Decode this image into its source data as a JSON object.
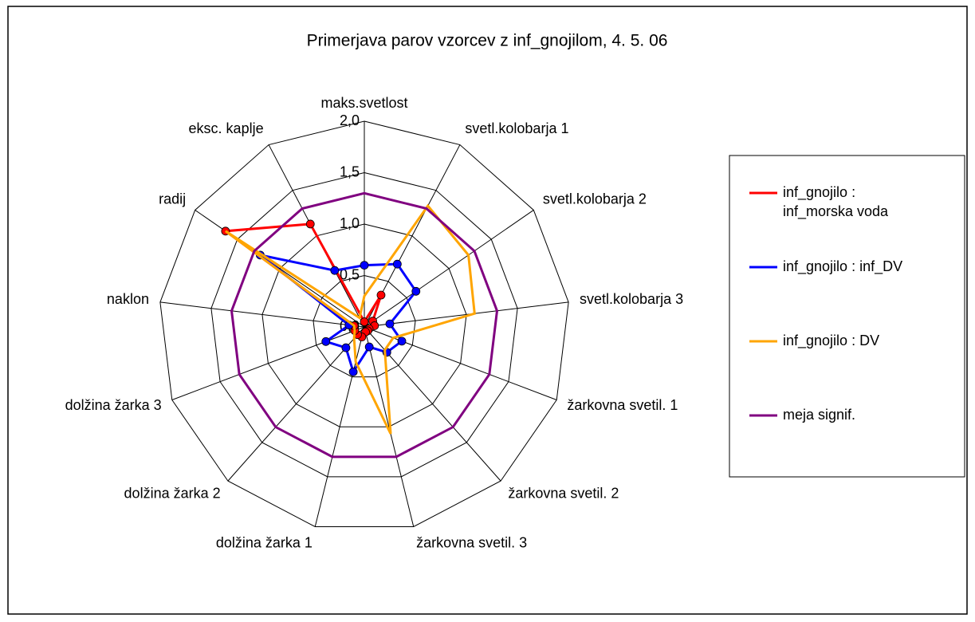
{
  "chart_data": {
    "type": "radar",
    "title": "Primerjava parov vzorcev z inf_gnojilom, 4. 5. 06",
    "categories": [
      "maks.svetlost",
      "svetl.kolobarja 1",
      "svetl.kolobarja 2",
      "svetl.kolobarja 3",
      "žarkovna svetil. 1",
      "žarkovna svetil. 2",
      "žarkovna svetil. 3",
      "dolžina žarka 1",
      "dolžina žarka 2",
      "dolžina žarka 3",
      "naklon",
      "radij",
      "eksc. kaplje"
    ],
    "ylim": [
      0,
      2
    ],
    "yticks": [
      {
        "value": 0,
        "label": "0,0"
      },
      {
        "value": 0.5,
        "label": "0,5"
      },
      {
        "value": 1,
        "label": "1,0"
      },
      {
        "value": 1.5,
        "label": "1,5"
      },
      {
        "value": 2,
        "label": "2,0"
      }
    ],
    "series": [
      {
        "name": "inf_gnojilo : inf_morska voda",
        "color": "#ff0000",
        "markers": true,
        "values": [
          0.05,
          0.35,
          0.1,
          0.1,
          0.05,
          0.05,
          0.05,
          0.1,
          0.1,
          0.1,
          0.1,
          1.64,
          1.13
        ]
      },
      {
        "name": "inf_gnojilo : inf_DV",
        "color": "#0000ff",
        "markers": true,
        "values": [
          0.6,
          0.69,
          0.61,
          0.25,
          0.39,
          0.33,
          0.2,
          0.45,
          0.27,
          0.4,
          0.15,
          1.23,
          0.62
        ]
      },
      {
        "name": "inf_gnojilo : DV",
        "color": "#ffa500",
        "markers": false,
        "values": [
          0.3,
          1.33,
          1.23,
          1.08,
          0.3,
          0.3,
          1.07,
          0.35,
          0.15,
          0.1,
          0.1,
          1.64,
          0.1
        ]
      },
      {
        "name": "meja signif.",
        "color": "#800080",
        "markers": false,
        "values": [
          1.3,
          1.3,
          1.3,
          1.3,
          1.3,
          1.3,
          1.3,
          1.3,
          1.3,
          1.3,
          1.3,
          1.3,
          1.3
        ]
      }
    ]
  }
}
